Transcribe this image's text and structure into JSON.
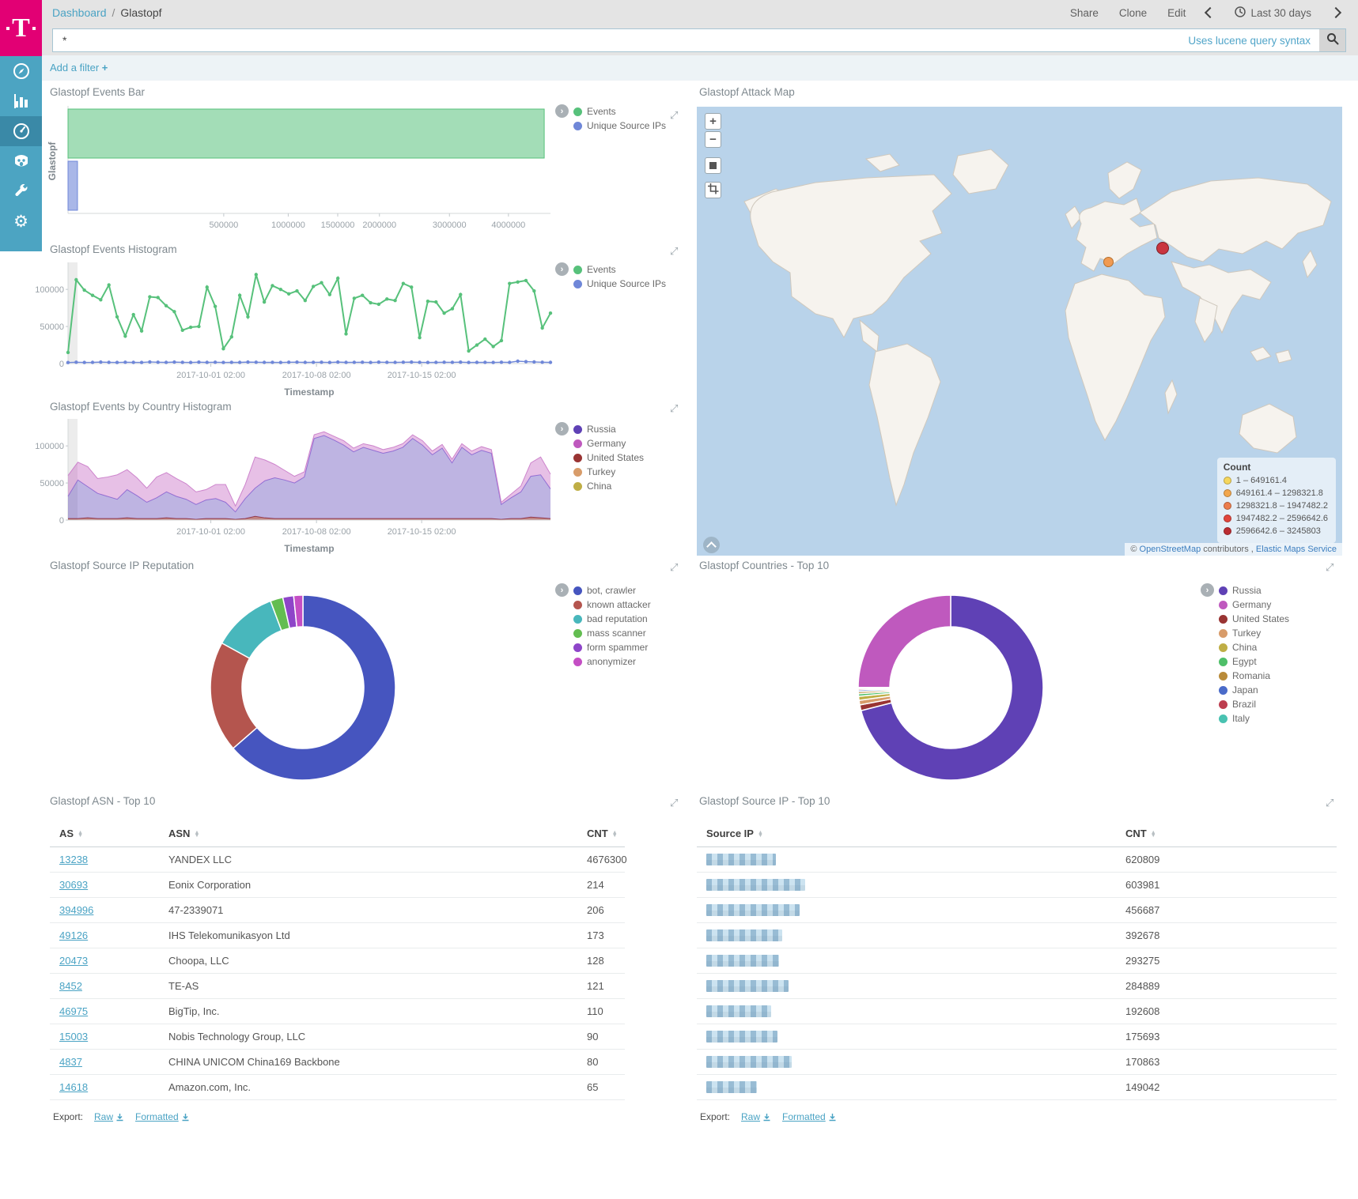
{
  "app": {
    "breadcrumb": {
      "link": "Dashboard",
      "sep": "/",
      "current": "Glastopf"
    },
    "actions": {
      "share": "Share",
      "clone": "Clone",
      "edit": "Edit"
    },
    "time_range": "Last 30 days",
    "query": {
      "value": "*",
      "hint": "Uses lucene query syntax"
    },
    "add_filter_label": "Add a filter",
    "add_filter_plus": "+"
  },
  "panels": {
    "events_bar": {
      "title": "Glastopf Events Bar"
    },
    "events_histogram": {
      "title": "Glastopf Events Histogram",
      "xlabel": "Timestamp"
    },
    "country_histogram": {
      "title": "Glastopf Events by Country Histogram",
      "xlabel": "Timestamp"
    },
    "attack_map": {
      "title": "Glastopf Attack Map",
      "controls": {
        "zoom_in": "+",
        "zoom_out": "−"
      },
      "legend_title": "Count",
      "legend": [
        {
          "label": "1 – 649161.4",
          "color": "#f5d65c"
        },
        {
          "label": "649161.4 – 1298321.8",
          "color": "#f2a74e"
        },
        {
          "label": "1298321.8 – 1947482.2",
          "color": "#ec7d4d"
        },
        {
          "label": "1947482.2 – 2596642.6",
          "color": "#e1453c"
        },
        {
          "label": "2596642.6 – 3245803",
          "color": "#bb2d32"
        }
      ],
      "markers": [
        {
          "x": 520,
          "y": 196,
          "d": 13,
          "fill": "#f09a52",
          "stroke": "#b5702f"
        },
        {
          "x": 589,
          "y": 179,
          "d": 16,
          "fill": "#c93540",
          "stroke": "#7e1f26"
        }
      ],
      "attribution": {
        "c": "©",
        "osm": "OpenStreetMap",
        "mid": "contributors ,",
        "ems": "Elastic Maps Service"
      }
    },
    "reputation_donut": {
      "title": "Glastopf Source IP Reputation"
    },
    "countries_donut": {
      "title": "Glastopf Countries - Top 10"
    },
    "asn_table": {
      "title": "Glastopf ASN - Top 10",
      "headers": [
        "AS",
        "ASN",
        "CNT"
      ],
      "rows": [
        [
          "13238",
          "YANDEX LLC",
          "4676300"
        ],
        [
          "30693",
          "Eonix Corporation",
          "214"
        ],
        [
          "394996",
          "47-2339071",
          "206"
        ],
        [
          "49126",
          "IHS Telekomunikasyon Ltd",
          "173"
        ],
        [
          "20473",
          "Choopa, LLC",
          "128"
        ],
        [
          "8452",
          "TE-AS",
          "121"
        ],
        [
          "46975",
          "BigTip, Inc.",
          "110"
        ],
        [
          "15003",
          "Nobis Technology Group, LLC",
          "90"
        ],
        [
          "4837",
          "CHINA UNICOM China169 Backbone",
          "80"
        ],
        [
          "14618",
          "Amazon.com, Inc.",
          "65"
        ]
      ],
      "export_label": "Export:",
      "export_links": [
        "Raw",
        "Formatted"
      ]
    },
    "ip_table": {
      "title": "Glastopf Source IP - Top 10",
      "headers": [
        "Source IP",
        "CNT"
      ],
      "rows": [
        {
          "cnt": "620809",
          "blur_width": 88
        },
        {
          "cnt": "603981",
          "blur_width": 125
        },
        {
          "cnt": "456687",
          "blur_width": 118
        },
        {
          "cnt": "392678",
          "blur_width": 96
        },
        {
          "cnt": "293275",
          "blur_width": 92
        },
        {
          "cnt": "284889",
          "blur_width": 104
        },
        {
          "cnt": "192608",
          "blur_width": 82
        },
        {
          "cnt": "175693",
          "blur_width": 90
        },
        {
          "cnt": "170863",
          "blur_width": 108
        },
        {
          "cnt": "149042",
          "blur_width": 64
        }
      ],
      "export_label": "Export:",
      "export_links": [
        "Raw",
        "Formatted"
      ]
    }
  },
  "chart_data": [
    {
      "id": "events_bar",
      "type": "bar",
      "orientation": "horizontal",
      "title": "Glastopf Events Bar",
      "category": "Glastopf",
      "x_scale": "sqrt",
      "x_max": 4800000,
      "x_ticks": [
        500000,
        1000000,
        1500000,
        2000000,
        3000000,
        4000000
      ],
      "series": [
        {
          "name": "Events",
          "value": 4676300,
          "color": "rgba(87,193,123,0.55)",
          "stroke": "#57c17b",
          "legend_color": "#57c17b"
        },
        {
          "name": "Unique Source IPs",
          "value": 1850,
          "color": "rgba(111,135,216,0.6)",
          "stroke": "#6f87d8",
          "legend_color": "#6f87d8"
        }
      ]
    },
    {
      "id": "events_histogram",
      "type": "line",
      "title": "Glastopf Events Histogram",
      "xlabel": "Timestamp",
      "ylim": [
        0,
        130000
      ],
      "y_ticks": [
        0,
        50000,
        100000
      ],
      "x_tick_pos": [
        0.296,
        0.515,
        0.733
      ],
      "x_tick_labels": [
        "2017-10-01 02:00",
        "2017-10-08 02:00",
        "2017-10-15 02:00"
      ],
      "series": [
        {
          "name": "Events",
          "color": "#57c17b",
          "values": [
            15000,
            113000,
            99000,
            92000,
            86000,
            106000,
            63000,
            37000,
            66000,
            44000,
            90000,
            89000,
            78000,
            70000,
            45000,
            49000,
            50000,
            103000,
            77000,
            20000,
            36000,
            92000,
            63000,
            120000,
            83000,
            105000,
            100000,
            94000,
            98000,
            85000,
            104000,
            109000,
            93000,
            115000,
            40000,
            88000,
            92000,
            82000,
            80000,
            87000,
            85000,
            108000,
            103000,
            35000,
            84000,
            83000,
            68000,
            74000,
            93000,
            17000,
            25000,
            33000,
            23000,
            31000,
            108000,
            110000,
            112000,
            98000,
            48000,
            68000
          ]
        },
        {
          "name": "Unique Source IPs",
          "color": "#6f87d8",
          "values": [
            1400,
            1800,
            1500,
            1600,
            2000,
            1700,
            1500,
            1800,
            1600,
            1500,
            2200,
            1800,
            1600,
            2000,
            1700,
            1500,
            1900,
            1600,
            1800,
            1500,
            1700,
            1600,
            2000,
            1800,
            1600,
            1700,
            1500,
            1800,
            1900,
            1600,
            1700,
            1800,
            1500,
            2000,
            1600,
            1700,
            1800,
            1500,
            1900,
            1700,
            1600,
            1800,
            2000,
            1700,
            1500,
            1600,
            1800,
            1700,
            1900,
            1500,
            1600,
            1700,
            1500,
            1800,
            1600,
            3200,
            2600,
            2200,
            1800,
            1600
          ]
        }
      ]
    },
    {
      "id": "country_histogram",
      "type": "area",
      "stacked": true,
      "title": "Glastopf Events by Country Histogram",
      "xlabel": "Timestamp",
      "ylim": [
        0,
        130000
      ],
      "y_ticks": [
        0,
        50000,
        100000
      ],
      "x_tick_pos": [
        0.296,
        0.515,
        0.733
      ],
      "x_tick_labels": [
        "2017-10-01 02:00",
        "2017-10-08 02:00",
        "2017-10-15 02:00"
      ],
      "stack_series": [
        {
          "name": "United States",
          "fill": "rgba(150,52,51,0.6)",
          "stroke": "#9e3533",
          "values": [
            2000,
            2000,
            3000,
            2000,
            2000,
            2000,
            3000,
            2000,
            2000,
            2000,
            3000,
            2000,
            2000,
            1000,
            2000,
            2000,
            2000,
            1000,
            2000,
            5000,
            3000,
            2000,
            2000,
            2000,
            2000,
            2000,
            2000,
            2000,
            2000,
            2000,
            2000,
            2000,
            2000,
            2000,
            2000,
            2000,
            2000,
            2000,
            2000,
            2000,
            2000,
            2000,
            2000,
            2000,
            1000,
            2000,
            2000,
            4000,
            3000,
            2000
          ]
        },
        {
          "name": "Russia",
          "fill": "rgba(101,77,185,0.42)",
          "stroke": "#8a74d8",
          "values": [
            30000,
            52000,
            42000,
            34000,
            30000,
            26000,
            38000,
            31000,
            22000,
            28000,
            35000,
            30000,
            26000,
            20000,
            25000,
            27000,
            22000,
            10000,
            27000,
            38000,
            50000,
            55000,
            52000,
            48000,
            56000,
            108000,
            112000,
            106000,
            99000,
            90000,
            96000,
            92000,
            88000,
            91000,
            96000,
            108000,
            99000,
            86000,
            95000,
            75000,
            96000,
            86000,
            92000,
            88000,
            20000,
            28000,
            36000,
            55000,
            58000,
            40000
          ]
        },
        {
          "name": "Germany",
          "fill": "rgba(191,89,190,0.38)",
          "stroke": "#cd84cc",
          "values": [
            28000,
            24000,
            27000,
            20000,
            26000,
            33000,
            27000,
            24000,
            19000,
            28000,
            26000,
            24000,
            21000,
            17000,
            14000,
            19000,
            24000,
            8000,
            19000,
            42000,
            28000,
            18000,
            13000,
            9000,
            7000,
            5000,
            5000,
            5000,
            6000,
            5000,
            5000,
            6000,
            5000,
            5000,
            5000,
            5000,
            6000,
            5000,
            5000,
            5000,
            5000,
            5000,
            5000,
            5000,
            3000,
            5000,
            8000,
            18000,
            24000,
            20000
          ]
        }
      ],
      "legend": [
        {
          "label": "Russia",
          "color": "#5f41b5"
        },
        {
          "label": "Germany",
          "color": "#bf59be"
        },
        {
          "label": "United States",
          "color": "#993433"
        },
        {
          "label": "Turkey",
          "color": "#d89c6a"
        },
        {
          "label": "China",
          "color": "#bfae45"
        }
      ]
    },
    {
      "id": "reputation_donut",
      "type": "pie",
      "donut": true,
      "title": "Glastopf Source IP Reputation",
      "slices": [
        {
          "label": "bot, crawler",
          "value": 63.6,
          "color": "#4655bf"
        },
        {
          "label": "known attacker",
          "value": 19.4,
          "color": "#b4554e"
        },
        {
          "label": "bad reputation",
          "value": 11.3,
          "color": "#48b7bc"
        },
        {
          "label": "mass scanner",
          "value": 2.2,
          "color": "#63bd51"
        },
        {
          "label": "form spammer",
          "value": 1.9,
          "color": "#8e45c9"
        },
        {
          "label": "anonymizer",
          "value": 1.6,
          "color": "#c44ec4"
        }
      ]
    },
    {
      "id": "countries_donut",
      "type": "pie",
      "donut": true,
      "title": "Glastopf Countries - Top 10",
      "slices": [
        {
          "label": "Russia",
          "value": 71.0,
          "color": "#5f41b5"
        },
        {
          "label": "United States",
          "value": 1.0,
          "color": "#993433"
        },
        {
          "label": "Turkey",
          "value": 0.8,
          "color": "#d89c6a"
        },
        {
          "label": "China",
          "value": 0.7,
          "color": "#bfae45"
        },
        {
          "label": "Egypt",
          "value": 0.45,
          "color": "#4fbf69"
        },
        {
          "label": "Romania",
          "value": 0.35,
          "color": "#b98b39"
        },
        {
          "label": "Japan",
          "value": 0.3,
          "color": "#4a6bc9"
        },
        {
          "label": "Brazil",
          "value": 0.25,
          "color": "#bd3e4f"
        },
        {
          "label": "Italy",
          "value": 0.2,
          "color": "#49c2b1"
        },
        {
          "label": "Germany",
          "value": 24.95,
          "color": "#bf59be"
        }
      ],
      "legend": [
        {
          "label": "Russia",
          "color": "#5f41b5"
        },
        {
          "label": "Germany",
          "color": "#bf59be"
        },
        {
          "label": "United States",
          "color": "#993433"
        },
        {
          "label": "Turkey",
          "color": "#d89c6a"
        },
        {
          "label": "China",
          "color": "#bfae45"
        },
        {
          "label": "Egypt",
          "color": "#4fbf69"
        },
        {
          "label": "Romania",
          "color": "#b98b39"
        },
        {
          "label": "Japan",
          "color": "#4a6bc9"
        },
        {
          "label": "Brazil",
          "color": "#bd3e4f"
        },
        {
          "label": "Italy",
          "color": "#49c2b1"
        }
      ]
    }
  ]
}
